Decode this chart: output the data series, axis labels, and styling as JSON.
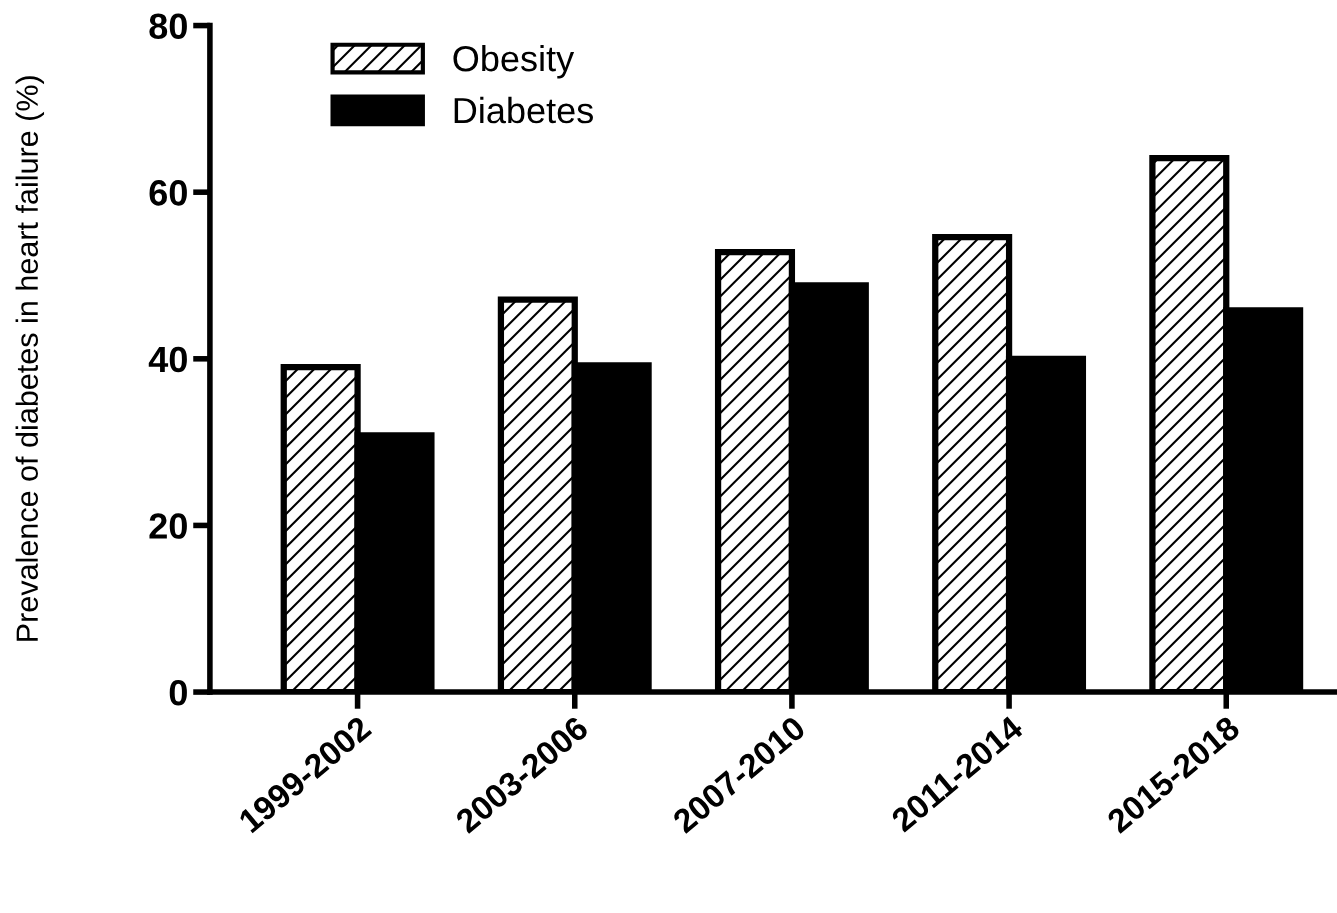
{
  "chart_data": {
    "type": "bar",
    "ylabel": "Prevalence of diabetes in heart failure (%)",
    "categories": [
      "1999-2002",
      "2003-2006",
      "2007-2010",
      "2011-2014",
      "2015-2018"
    ],
    "series": [
      {
        "name": "Obesity",
        "color": "#000000",
        "values": [
          39.0,
          47.1,
          52.8,
          54.6,
          64.1
        ]
      },
      {
        "name": "Diabetes",
        "color": "#000000",
        "values": [
          30.8,
          39.2,
          48.8,
          40.0,
          45.8
        ]
      }
    ],
    "ylim": [
      0,
      80
    ],
    "yticks": [
      0,
      20,
      40,
      60,
      80
    ],
    "grid": false,
    "legend": "top left"
  }
}
